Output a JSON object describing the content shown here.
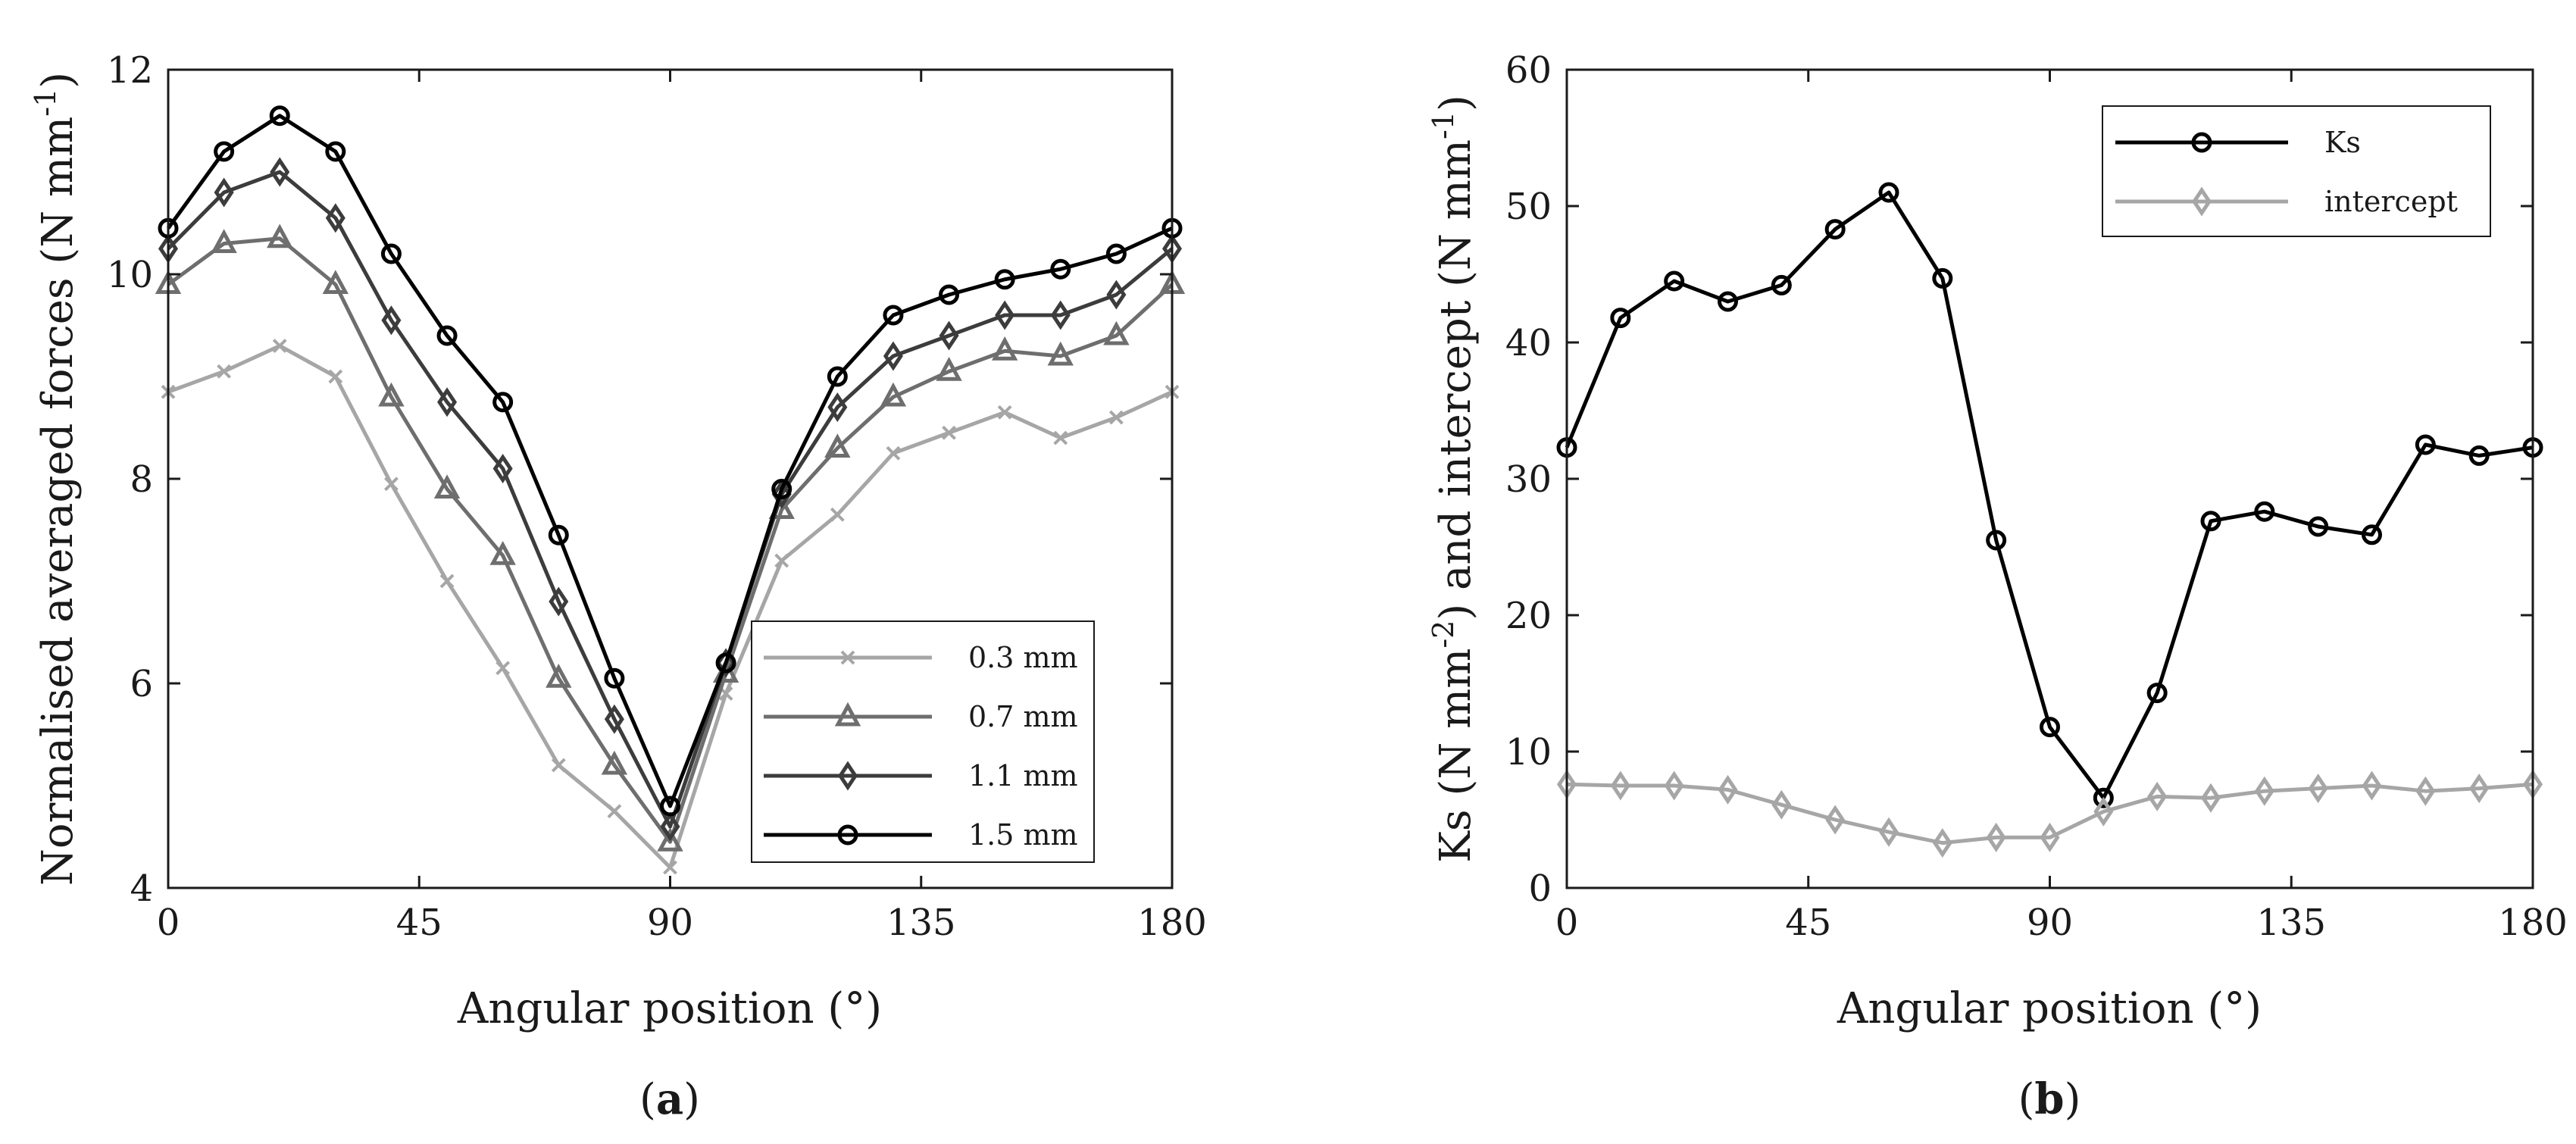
{
  "chart_data": [
    {
      "type": "line",
      "panel_label": {
        "open": "(",
        "letter": "a",
        "close": ")"
      },
      "xlabel": "Angular position (°)",
      "ylabel": {
        "main": "Normalised averaged forces (N mm",
        "sup": "-1",
        "close": ")"
      },
      "xlim": [
        0,
        180
      ],
      "ylim": [
        4,
        12
      ],
      "xticks": [
        0,
        45,
        90,
        135,
        180
      ],
      "yticks": [
        4,
        6,
        8,
        10,
        12
      ],
      "grid": false,
      "legend_position": "bottom-right",
      "x": [
        0,
        10,
        20,
        30,
        40,
        50,
        60,
        70,
        80,
        90,
        100,
        110,
        120,
        130,
        140,
        150,
        160,
        170,
        180
      ],
      "series": [
        {
          "name": "0.3 mm",
          "marker": "x",
          "color": "#a6a6a6",
          "values": [
            8.85,
            9.05,
            9.3,
            9.0,
            7.95,
            7.0,
            6.15,
            5.2,
            4.75,
            4.2,
            5.9,
            7.2,
            7.65,
            8.25,
            8.45,
            8.65,
            8.4,
            8.6,
            8.85
          ]
        },
        {
          "name": "0.7 mm",
          "marker": "triangle",
          "color": "#6e6e6e",
          "values": [
            9.9,
            10.3,
            10.35,
            9.9,
            8.8,
            7.9,
            7.25,
            6.05,
            5.2,
            4.45,
            6.1,
            7.7,
            8.3,
            8.8,
            9.05,
            9.25,
            9.2,
            9.4,
            9.9
          ]
        },
        {
          "name": "1.1 mm",
          "marker": "diamond",
          "color": "#3c3c3c",
          "values": [
            10.25,
            10.8,
            11.0,
            10.55,
            9.55,
            8.75,
            8.1,
            6.8,
            5.65,
            4.6,
            6.2,
            7.85,
            8.7,
            9.2,
            9.4,
            9.6,
            9.6,
            9.8,
            10.25
          ]
        },
        {
          "name": "1.5 mm",
          "marker": "circle",
          "color": "#000000",
          "values": [
            10.45,
            11.2,
            11.55,
            11.2,
            10.2,
            9.4,
            8.75,
            7.45,
            6.05,
            4.8,
            6.2,
            7.9,
            9.0,
            9.6,
            9.8,
            9.95,
            10.05,
            10.2,
            10.45
          ]
        }
      ]
    },
    {
      "type": "line",
      "panel_label": {
        "open": "(",
        "letter": "b",
        "close": ")"
      },
      "xlabel": "Angular position (°)",
      "ylabel": {
        "p1": "Ks (N mm",
        "sup1": "-2",
        "p2": ") and intercept (N mm",
        "sup2": "-1",
        "p3": ")"
      },
      "xlim": [
        0,
        180
      ],
      "ylim": [
        0,
        60
      ],
      "xticks": [
        0,
        45,
        90,
        135,
        180
      ],
      "yticks": [
        0,
        10,
        20,
        30,
        40,
        50,
        60
      ],
      "grid": false,
      "legend_position": "top-right",
      "x": [
        0,
        10,
        20,
        30,
        40,
        50,
        60,
        70,
        80,
        90,
        100,
        110,
        120,
        130,
        140,
        150,
        160,
        170,
        180
      ],
      "series": [
        {
          "name": "Ks",
          "marker": "circle",
          "color": "#000000",
          "values": [
            32.3,
            41.8,
            44.5,
            43.0,
            44.2,
            48.3,
            51.0,
            44.7,
            25.5,
            11.8,
            6.6,
            14.3,
            26.9,
            27.6,
            26.5,
            25.9,
            32.5,
            31.7,
            32.3
          ]
        },
        {
          "name": "intercept",
          "marker": "diamond",
          "color": "#a6a6a6",
          "values": [
            7.6,
            7.5,
            7.5,
            7.2,
            6.1,
            5.0,
            4.1,
            3.3,
            3.7,
            3.7,
            5.6,
            6.7,
            6.6,
            7.1,
            7.3,
            7.5,
            7.1,
            7.3,
            7.6
          ]
        }
      ]
    }
  ]
}
